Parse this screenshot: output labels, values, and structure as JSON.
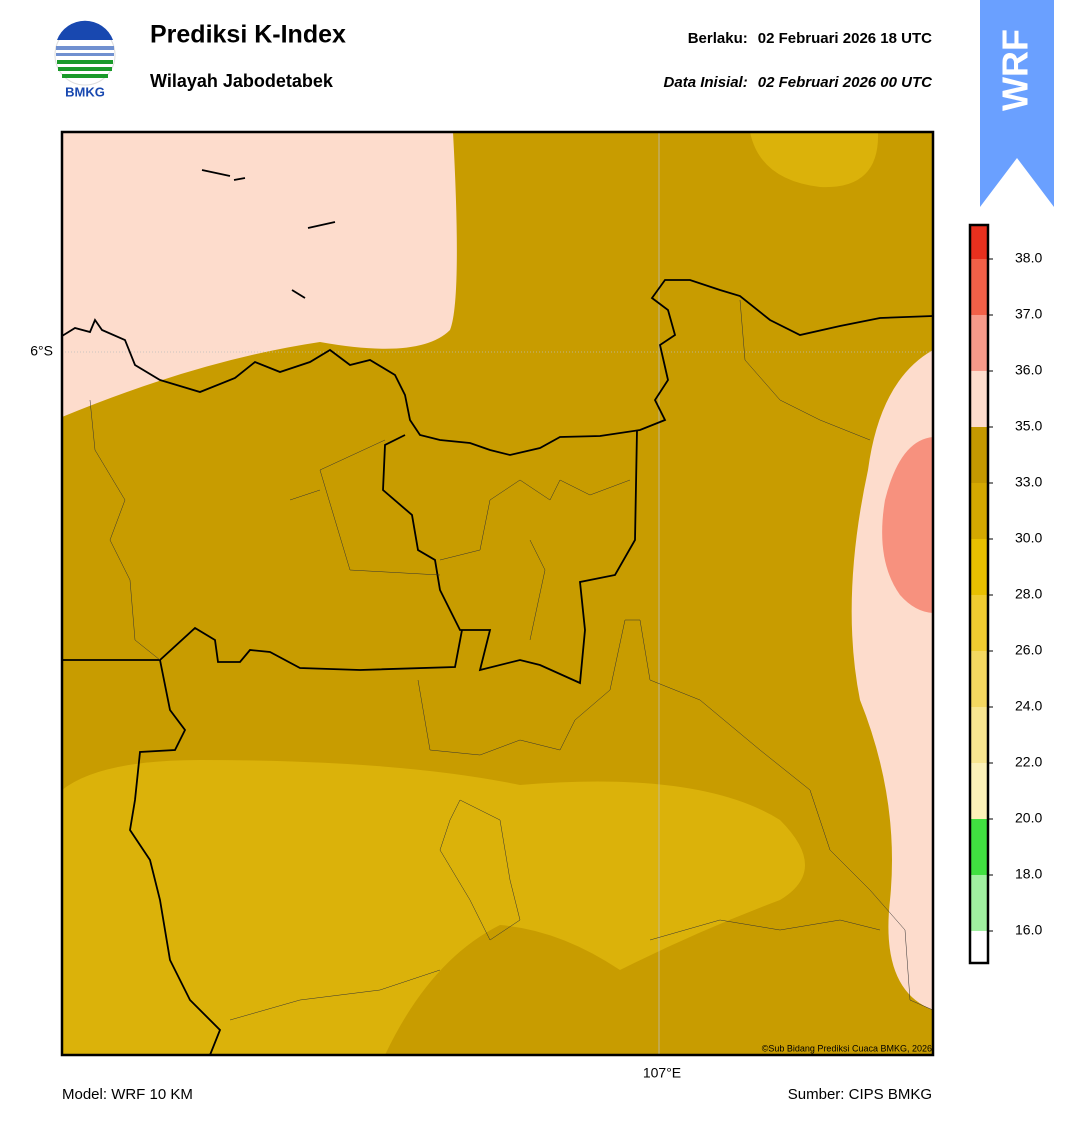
{
  "logo_text": "BMKG",
  "title": "Prediksi K-Index",
  "subtitle": "Wilayah Jabodetabek",
  "valid": {
    "label": "Berlaku:",
    "value": "02 Februari 2026 18 UTC"
  },
  "init": {
    "label": "Data Inisial:",
    "value": "02 Februari 2026 00 UTC"
  },
  "badge": "WRF",
  "map": {
    "lat_label": "6°S",
    "lon_label": "107°E",
    "credit": "©Sub Bidang Prediksi Cuaca BMKG, 2026"
  },
  "colorbar": {
    "labels": [
      "38.0",
      "37.0",
      "36.0",
      "35.0",
      "33.0",
      "30.0",
      "28.0",
      "26.0",
      "24.0",
      "22.0",
      "20.0",
      "18.0",
      "16.0"
    ],
    "colors": [
      "#e8301e",
      "#f26048",
      "#f79a8a",
      "#fddccc",
      "#c49800",
      "#d4a800",
      "#e8c000",
      "#f0cc30",
      "#f4d860",
      "#f8e690",
      "#fcf2b8",
      "#40e040",
      "#a0f0a0",
      "#ffffff"
    ]
  },
  "footer": {
    "model": "Model: WRF 10 KM",
    "source": "Sumber: CIPS BMKG"
  }
}
